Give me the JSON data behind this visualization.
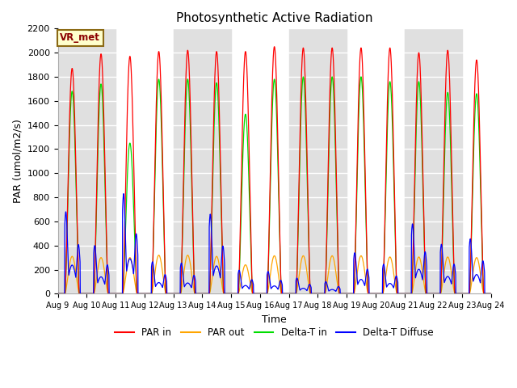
{
  "title": "Photosynthetic Active Radiation",
  "ylabel": "PAR (umol/m2/s)",
  "xlabel": "Time",
  "ylim": [
    0,
    2200
  ],
  "annotation_text": "VR_met",
  "series_colors": {
    "PAR in": "#ff0000",
    "PAR out": "#ffa500",
    "Delta-T in": "#00dd00",
    "Delta-T Diffuse": "#0000ff"
  },
  "legend_labels": [
    "PAR in",
    "PAR out",
    "Delta-T in",
    "Delta-T Diffuse"
  ],
  "xtick_labels": [
    "Aug 9",
    "Aug 10",
    "Aug 11",
    "Aug 12",
    "Aug 13",
    "Aug 14",
    "Aug 15",
    "Aug 16",
    "Aug 17",
    "Aug 18",
    "Aug 19",
    "Aug 20",
    "Aug 21",
    "Aug 22",
    "Aug 23",
    "Aug 24"
  ],
  "n_days": 15,
  "background_color": "#ffffff",
  "band_color": "#e0e0e0"
}
